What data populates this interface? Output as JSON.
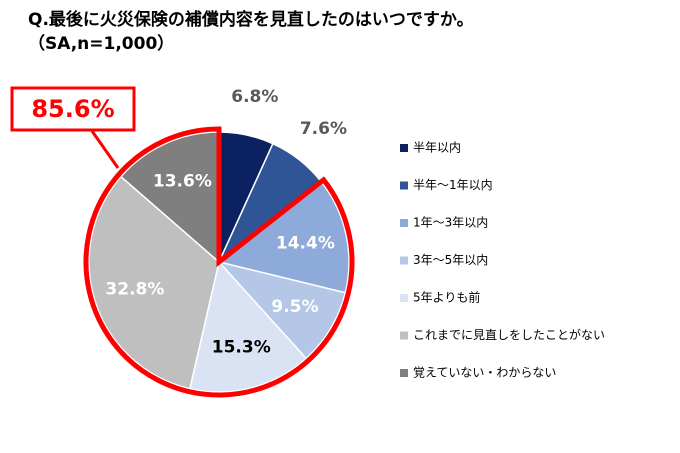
{
  "chart_data": {
    "type": "pie",
    "title": "Q.最後に火災保険の補償内容を見直したのはいつですか。",
    "subtitle": "（SA,n=1,000）",
    "callout": "85.6%",
    "categories": [
      "半年以内",
      "半年〜1年以内",
      "1年〜3年以内",
      "3年〜5年以内",
      "5年よりも前",
      "これまでに見直しをしたことがない",
      "覚えていない・わからない"
    ],
    "values": [
      6.8,
      7.6,
      14.4,
      9.5,
      15.3,
      32.8,
      13.6
    ],
    "value_labels": [
      "6.8%",
      "7.6%",
      "14.4%",
      "9.5%",
      "15.3%",
      "32.8%",
      "13.6%"
    ],
    "colors": [
      "#0b2160",
      "#2f5597",
      "#8eaadb",
      "#b4c7e7",
      "#dae3f3",
      "#bfbfbf",
      "#7f7f7f"
    ],
    "legend": "right"
  }
}
